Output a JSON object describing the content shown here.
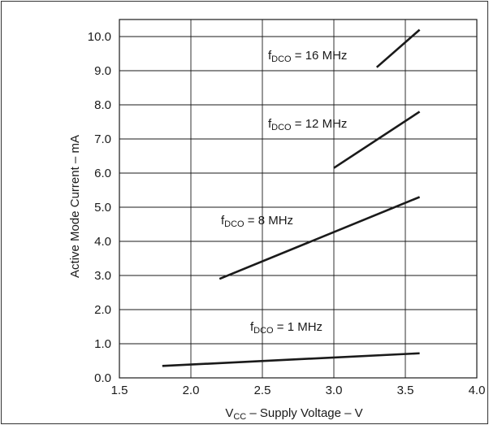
{
  "chart_data": {
    "type": "line",
    "xlabel": {
      "main": "V",
      "sub": "CC",
      "rest": " – Supply Voltage – V"
    },
    "ylabel": "Active Mode Current – mA",
    "xlim": [
      1.5,
      4.0
    ],
    "ylim": [
      0.0,
      10.5
    ],
    "grid": true,
    "x_ticks": [
      1.5,
      2.0,
      2.5,
      3.0,
      3.5,
      4.0
    ],
    "x_tick_labels": [
      "1.5",
      "2.0",
      "2.5",
      "3.0",
      "3.5",
      "4.0"
    ],
    "y_ticks": [
      0.0,
      1.0,
      2.0,
      3.0,
      4.0,
      5.0,
      6.0,
      7.0,
      8.0,
      9.0,
      10.0
    ],
    "y_tick_labels": [
      "0.0",
      "1.0",
      "2.0",
      "3.0",
      "4.0",
      "5.0",
      "6.0",
      "7.0",
      "8.0",
      "9.0",
      "10.0"
    ],
    "series": [
      {
        "label_main": "f",
        "label_sub": "DCO",
        "label_rest": " = 16 MHz",
        "x": [
          3.3,
          3.6
        ],
        "y": [
          9.1,
          10.2
        ]
      },
      {
        "label_main": "f",
        "label_sub": "DCO",
        "label_rest": " = 12 MHz",
        "x": [
          3.0,
          3.6
        ],
        "y": [
          6.15,
          7.8
        ]
      },
      {
        "label_main": "f",
        "label_sub": "DCO",
        "label_rest": " = 8 MHz",
        "x": [
          2.2,
          3.6
        ],
        "y": [
          2.9,
          5.3
        ]
      },
      {
        "label_main": "f",
        "label_sub": "DCO",
        "label_rest": " = 1 MHz",
        "x": [
          1.8,
          3.6
        ],
        "y": [
          0.35,
          0.72
        ]
      }
    ]
  }
}
